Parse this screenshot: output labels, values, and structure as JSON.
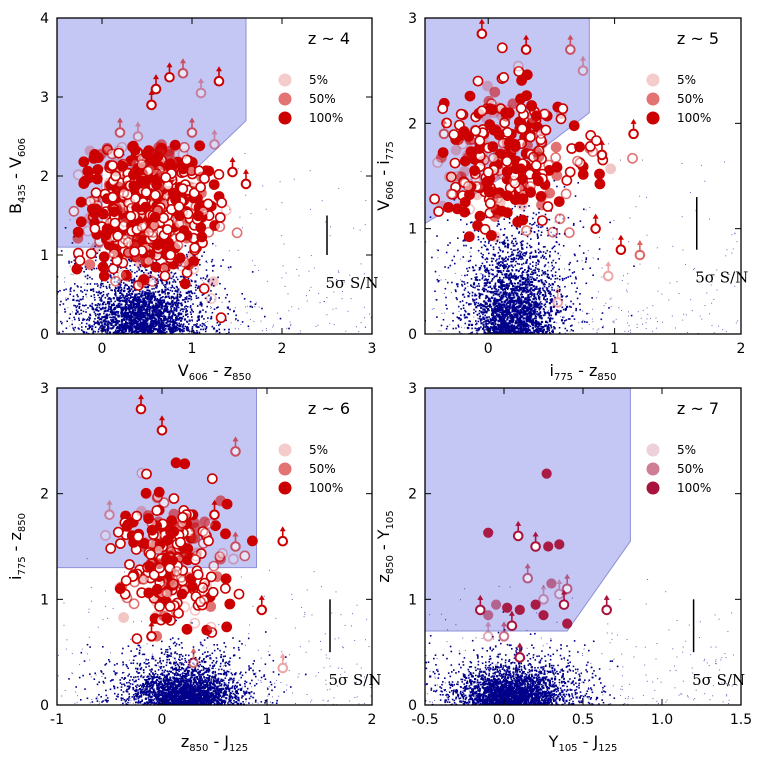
{
  "chart_data": [
    {
      "type": "scatter",
      "title": "z ~ 4",
      "xlabel": {
        "main": "V",
        "sub": "606",
        "rest": " - z",
        "sub2": "850"
      },
      "ylabel": {
        "main": "B",
        "sub": "435",
        "rest": " - V",
        "sub2": "606"
      },
      "xlim": [
        -0.5,
        3.0
      ],
      "ylim": [
        0,
        4
      ],
      "xticks": [
        0,
        1,
        2,
        3
      ],
      "yticks": [
        0,
        1,
        2,
        3,
        4
      ],
      "xtick_labels": [
        "0",
        "1",
        "2",
        "3"
      ],
      "ytick_labels": [
        "0",
        "1",
        "2",
        "3",
        "4"
      ],
      "selection_region": [
        [
          -0.5,
          4.0
        ],
        [
          1.6,
          4.0
        ],
        [
          1.6,
          2.7
        ],
        [
          1.05,
          2.1
        ],
        [
          0.0,
          2.1
        ],
        [
          0.0,
          1.1
        ],
        [
          -0.5,
          1.1
        ]
      ],
      "legend": [
        "5%",
        "50%",
        "100%"
      ],
      "sn_label": "5σ S/N",
      "sn_bar": [
        1.0,
        1.5
      ],
      "sn_x": 2.5,
      "field_cloud": {
        "cx": 0.45,
        "cy": 0.4,
        "sx": 0.45,
        "sy": 0.35,
        "n": 1400,
        "spread_x": [
          -0.5,
          3.0
        ],
        "spread_y": [
          0.0,
          2.5
        ]
      },
      "candidates": {
        "cx": 0.5,
        "cy": 1.65,
        "sx": 0.35,
        "sy": 0.45,
        "n": 700,
        "xr": [
          -0.35,
          1.6
        ],
        "yr": [
          0.2,
          2.4
        ]
      },
      "upper_limits": [
        [
          0.6,
          3.1
        ],
        [
          0.75,
          3.25
        ],
        [
          0.9,
          3.3
        ],
        [
          1.1,
          3.05
        ],
        [
          1.3,
          3.2
        ],
        [
          0.55,
          2.9
        ],
        [
          1.0,
          2.55
        ],
        [
          1.25,
          2.4
        ],
        [
          1.45,
          2.05
        ],
        [
          1.6,
          1.9
        ],
        [
          0.2,
          2.55
        ],
        [
          0.4,
          2.5
        ]
      ]
    },
    {
      "type": "scatter",
      "title": "z ~ 5",
      "xlabel": {
        "main": "i",
        "sub": "775",
        "rest": " - z",
        "sub2": "850"
      },
      "ylabel": {
        "main": "V",
        "sub": "606",
        "rest": " - i",
        "sub2": "775"
      },
      "xlim": [
        -0.5,
        2.0
      ],
      "ylim": [
        0,
        3
      ],
      "xticks": [
        0,
        1,
        2
      ],
      "yticks": [
        0,
        1,
        2,
        3
      ],
      "xtick_labels": [
        "0",
        "1",
        "2"
      ],
      "ytick_labels": [
        "0",
        "1",
        "2",
        "3"
      ],
      "selection_region": [
        [
          -0.5,
          3.0
        ],
        [
          0.8,
          3.0
        ],
        [
          0.8,
          2.1
        ],
        [
          0.2,
          1.55
        ],
        [
          -0.5,
          1.05
        ]
      ],
      "legend": [
        "5%",
        "50%",
        "100%"
      ],
      "sn_label": "5σ S/N",
      "sn_bar": [
        0.8,
        1.3
      ],
      "sn_x": 1.65,
      "field_cloud": {
        "cx": 0.2,
        "cy": 0.4,
        "sx": 0.25,
        "sy": 0.4,
        "n": 1400,
        "spread_x": [
          -0.5,
          2.0
        ],
        "spread_y": [
          0.0,
          2.0
        ]
      },
      "candidates": {
        "cx": 0.15,
        "cy": 1.65,
        "sx": 0.3,
        "sy": 0.35,
        "n": 320,
        "xr": [
          -0.45,
          1.2
        ],
        "yr": [
          0.9,
          2.8
        ]
      },
      "upper_limits": [
        [
          -0.05,
          2.85
        ],
        [
          0.3,
          2.7
        ],
        [
          0.65,
          2.7
        ],
        [
          0.75,
          2.5
        ],
        [
          0.9,
          1.7
        ],
        [
          1.15,
          1.9
        ],
        [
          -0.35,
          1.9
        ],
        [
          0.55,
          0.3
        ],
        [
          0.85,
          1.0
        ],
        [
          1.05,
          0.8
        ],
        [
          1.2,
          0.75
        ],
        [
          0.95,
          0.55
        ]
      ]
    },
    {
      "type": "scatter",
      "title": "z ~ 6",
      "xlabel": {
        "main": "z",
        "sub": "850",
        "rest": " - J",
        "sub2": "125"
      },
      "ylabel": {
        "main": "i",
        "sub": "775",
        "rest": " - z",
        "sub2": "850"
      },
      "xlim": [
        -1.0,
        2.0
      ],
      "ylim": [
        0,
        3
      ],
      "xticks": [
        -1,
        0,
        1,
        2
      ],
      "yticks": [
        0,
        1,
        2,
        3
      ],
      "xtick_labels": [
        "-1",
        "0",
        "1",
        "2"
      ],
      "ytick_labels": [
        "0",
        "1",
        "2",
        "3"
      ],
      "selection_region": [
        [
          -1.0,
          3.0
        ],
        [
          0.9,
          3.0
        ],
        [
          0.9,
          1.3
        ],
        [
          -1.0,
          1.3
        ]
      ],
      "legend": [
        "5%",
        "50%",
        "100%"
      ],
      "sn_label": "5σ S/N",
      "sn_bar": [
        0.5,
        1.0
      ],
      "sn_x": 1.6,
      "field_cloud": {
        "cx": 0.2,
        "cy": 0.15,
        "sx": 0.35,
        "sy": 0.2,
        "n": 1500,
        "spread_x": [
          -1.0,
          2.0
        ],
        "spread_y": [
          0.0,
          1.5
        ]
      },
      "candidates": {
        "cx": 0.1,
        "cy": 1.35,
        "sx": 0.25,
        "sy": 0.35,
        "n": 260,
        "xr": [
          -0.55,
          0.95
        ],
        "yr": [
          0.6,
          2.5
        ]
      },
      "upper_limits": [
        [
          -0.2,
          2.8
        ],
        [
          0.0,
          2.6
        ],
        [
          0.7,
          2.4
        ],
        [
          -0.5,
          1.8
        ],
        [
          0.5,
          1.8
        ],
        [
          1.15,
          1.55
        ],
        [
          0.7,
          1.5
        ],
        [
          0.4,
          1.0
        ],
        [
          0.95,
          0.9
        ],
        [
          -0.1,
          0.65
        ],
        [
          0.3,
          0.4
        ],
        [
          1.15,
          0.35
        ]
      ]
    },
    {
      "type": "scatter",
      "title": "z ~ 7",
      "xlabel": {
        "main": "Y",
        "sub": "105",
        "rest": " - J",
        "sub2": "125"
      },
      "ylabel": {
        "main": "z",
        "sub": "850",
        "rest": " - Y",
        "sub2": "105"
      },
      "xlim": [
        -0.5,
        1.5
      ],
      "ylim": [
        0,
        3
      ],
      "xticks": [
        -0.5,
        0.0,
        0.5,
        1.0,
        1.5
      ],
      "yticks": [
        0,
        1,
        2,
        3
      ],
      "xtick_labels": [
        "-0.5",
        "0.0",
        "0.5",
        "1.0",
        "1.5"
      ],
      "ytick_labels": [
        "0",
        "1",
        "2",
        "3"
      ],
      "selection_region": [
        [
          -0.5,
          3.0
        ],
        [
          0.8,
          3.0
        ],
        [
          0.8,
          1.55
        ],
        [
          0.4,
          0.7
        ],
        [
          -0.5,
          0.7
        ]
      ],
      "legend": [
        "5%",
        "50%",
        "100%"
      ],
      "sn_label": "5σ S/N",
      "sn_bar": [
        0.5,
        1.0
      ],
      "sn_x": 1.2,
      "field_cloud": {
        "cx": 0.05,
        "cy": 0.15,
        "sx": 0.25,
        "sy": 0.2,
        "n": 1400,
        "spread_x": [
          -0.5,
          1.5
        ],
        "spread_y": [
          0.0,
          1.2
        ]
      },
      "candidates_points": [
        [
          -0.1,
          1.63
        ],
        [
          0.27,
          2.19
        ],
        [
          0.2,
          1.5
        ],
        [
          0.28,
          1.5
        ],
        [
          0.35,
          1.52
        ],
        [
          0.3,
          1.15
        ],
        [
          0.2,
          0.95
        ],
        [
          0.1,
          0.9
        ],
        [
          -0.05,
          0.95
        ],
        [
          0.4,
          0.77
        ],
        [
          0.25,
          0.85
        ],
        [
          -0.1,
          0.85
        ],
        [
          0.02,
          0.92
        ]
      ],
      "upper_limits": [
        [
          0.09,
          1.6
        ],
        [
          0.2,
          1.5
        ],
        [
          0.15,
          1.2
        ],
        [
          0.35,
          1.05
        ],
        [
          0.38,
          0.95
        ],
        [
          0.05,
          0.75
        ],
        [
          0.0,
          0.65
        ],
        [
          -0.1,
          0.65
        ],
        [
          0.65,
          0.9
        ],
        [
          -0.15,
          0.9
        ],
        [
          0.4,
          1.1
        ],
        [
          0.25,
          1.0
        ],
        [
          0.1,
          0.45
        ]
      ]
    }
  ]
}
